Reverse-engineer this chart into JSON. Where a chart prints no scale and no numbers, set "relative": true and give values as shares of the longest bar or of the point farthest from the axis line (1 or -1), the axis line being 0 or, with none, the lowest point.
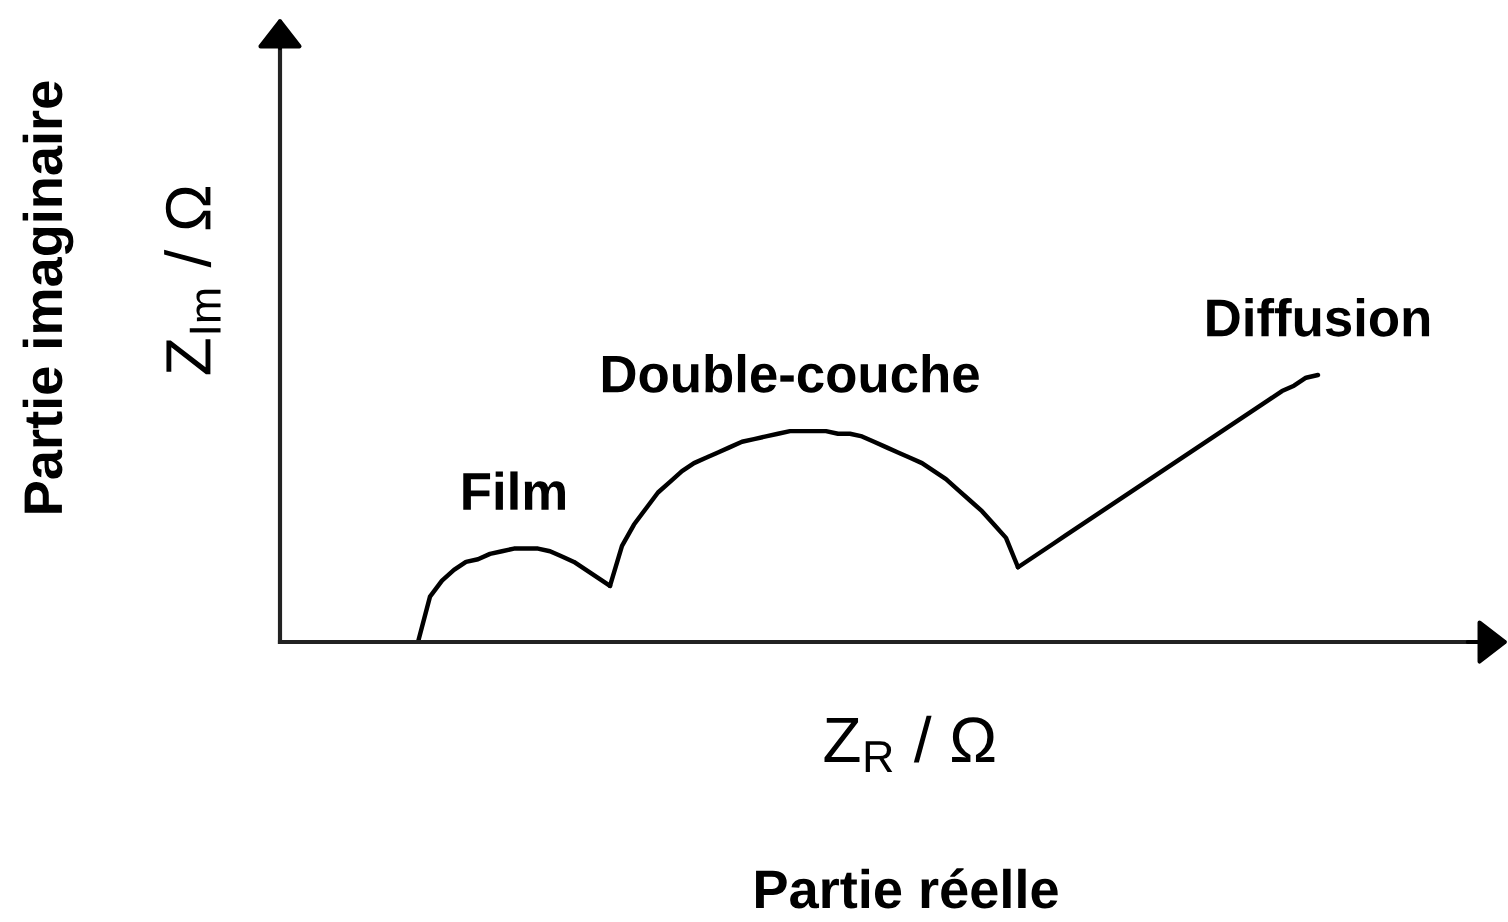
{
  "chart_data": {
    "type": "line",
    "relative": true,
    "xlabel": "Z$_{R}$ / Ω",
    "ylabel": "Z$_{Im}$ / Ω",
    "annotations": [
      "Partie réelle",
      "Partie imaginaire"
    ],
    "categories": [
      null,
      null,
      null,
      null,
      null,
      null,
      null,
      null,
      null,
      null,
      null,
      null,
      null,
      null,
      null,
      null,
      null,
      null,
      null,
      null,
      null,
      null,
      null,
      null,
      null,
      null,
      null,
      null,
      null,
      null,
      null,
      null,
      null,
      null,
      null,
      null,
      null,
      null,
      null,
      null,
      null,
      null,
      null,
      null,
      null,
      null,
      null,
      null,
      null,
      null,
      null,
      null,
      null,
      null,
      null,
      null,
      null,
      null,
      null,
      null,
      null,
      null,
      null,
      null,
      null,
      null,
      null,
      null,
      null,
      null,
      null,
      null,
      null,
      null,
      null,
      null,
      null,
      null,
      null,
      null,
      null,
      null,
      null,
      null,
      null,
      null,
      null,
      null,
      null,
      null,
      null,
      null,
      null,
      null,
      null,
      null,
      null,
      null,
      null,
      null,
      null
    ],
    "series": [
      {
        "name": "Film",
        "color": "#000000",
        "values": [
          null,
          null,
          null,
          null,
          null,
          null,
          null,
          null,
          null,
          null,
          null,
          0,
          0.17,
          0.23,
          0.27,
          0.3,
          0.31,
          0.33,
          0.34,
          0.35,
          0.35,
          0.35,
          0.34,
          0.32,
          0.3,
          0.27,
          0.24,
          0.21,
          null,
          null,
          null,
          null,
          null,
          null,
          null,
          null,
          null,
          null,
          null,
          null,
          null,
          null,
          null,
          null,
          null,
          null,
          null,
          null,
          null,
          null,
          null,
          null,
          null,
          null,
          null,
          null,
          null,
          null,
          null,
          null,
          null,
          null,
          null,
          null,
          null,
          null,
          null,
          null,
          null,
          null,
          null,
          null,
          null,
          null,
          null,
          null,
          null,
          null,
          null,
          null,
          null,
          null,
          null,
          null,
          null,
          null,
          null,
          null,
          null,
          null,
          null,
          null,
          null,
          null,
          null,
          null,
          null,
          null,
          null,
          null,
          null
        ]
      },
      {
        "name": "Double-couche",
        "color": "#000000",
        "values": [
          null,
          null,
          null,
          null,
          null,
          null,
          null,
          null,
          null,
          null,
          null,
          null,
          null,
          null,
          null,
          null,
          null,
          null,
          null,
          null,
          null,
          null,
          null,
          null,
          null,
          null,
          null,
          0.21,
          0.36,
          0.44,
          0.5,
          0.56,
          0.6,
          0.64,
          0.67,
          0.69,
          0.71,
          0.73,
          0.75,
          0.76,
          0.77,
          0.78,
          0.79,
          0.79,
          0.79,
          0.79,
          0.78,
          0.78,
          0.77,
          0.75,
          0.73,
          0.71,
          0.69,
          0.67,
          0.64,
          0.61,
          0.57,
          0.53,
          0.49,
          0.44,
          0.39,
          0.28,
          null,
          null,
          null,
          null,
          null,
          null,
          null,
          null,
          null,
          null,
          null,
          null,
          null,
          null,
          null,
          null,
          null,
          null,
          null,
          null,
          null,
          null,
          null,
          null,
          null,
          null,
          null,
          null,
          null,
          null,
          null,
          null,
          null,
          null,
          null,
          null,
          null,
          null,
          null
        ]
      },
      {
        "name": "Diffusion",
        "color": "#000000",
        "values": [
          null,
          null,
          null,
          null,
          null,
          null,
          null,
          null,
          null,
          null,
          null,
          null,
          null,
          null,
          null,
          null,
          null,
          null,
          null,
          null,
          null,
          null,
          null,
          null,
          null,
          null,
          null,
          null,
          null,
          null,
          null,
          null,
          null,
          null,
          null,
          null,
          null,
          null,
          null,
          null,
          null,
          null,
          null,
          null,
          null,
          null,
          null,
          null,
          null,
          null,
          null,
          null,
          null,
          null,
          null,
          null,
          null,
          null,
          null,
          null,
          null,
          0.28,
          0.31,
          0.34,
          0.37,
          0.4,
          0.43,
          0.46,
          0.49,
          0.52,
          0.55,
          0.58,
          0.61,
          0.64,
          0.67,
          0.7,
          0.73,
          0.76,
          0.79,
          0.82,
          0.85,
          0.88,
          0.91,
          0.94,
          0.96,
          0.99,
          1.0,
          null,
          null,
          null,
          null,
          null,
          null,
          null,
          null,
          null,
          null,
          null,
          null,
          null,
          null
        ]
      }
    ]
  }
}
